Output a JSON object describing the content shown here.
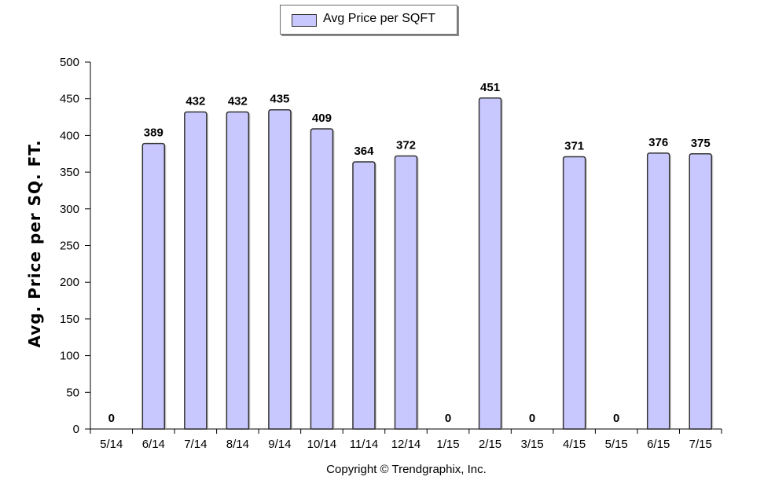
{
  "chart_data": {
    "type": "bar",
    "title": "",
    "xlabel": "",
    "ylabel": "Avg. Price per SQ. FT.",
    "ylim": [
      0,
      500
    ],
    "yticks": [
      0,
      50,
      100,
      150,
      200,
      250,
      300,
      350,
      400,
      450,
      500
    ],
    "categories": [
      "5/14",
      "6/14",
      "7/14",
      "8/14",
      "9/14",
      "10/14",
      "11/14",
      "12/14",
      "1/15",
      "2/15",
      "3/15",
      "4/15",
      "5/15",
      "6/15",
      "7/15"
    ],
    "series": [
      {
        "name": "Avg Price per SQFT",
        "values": [
          0,
          389,
          432,
          432,
          435,
          409,
          364,
          372,
          0,
          451,
          0,
          371,
          0,
          376,
          375
        ],
        "color": "#c8c8ff"
      }
    ],
    "data_labels": true,
    "legend_position": "top-center",
    "grid": false
  },
  "legend": {
    "label": "Avg Price per SQFT"
  },
  "copyright": "Copyright © Trendgraphix, Inc.",
  "colors": {
    "bar_fill": "#c8c8ff",
    "bar_stroke": "#333333",
    "axis": "#000000"
  }
}
